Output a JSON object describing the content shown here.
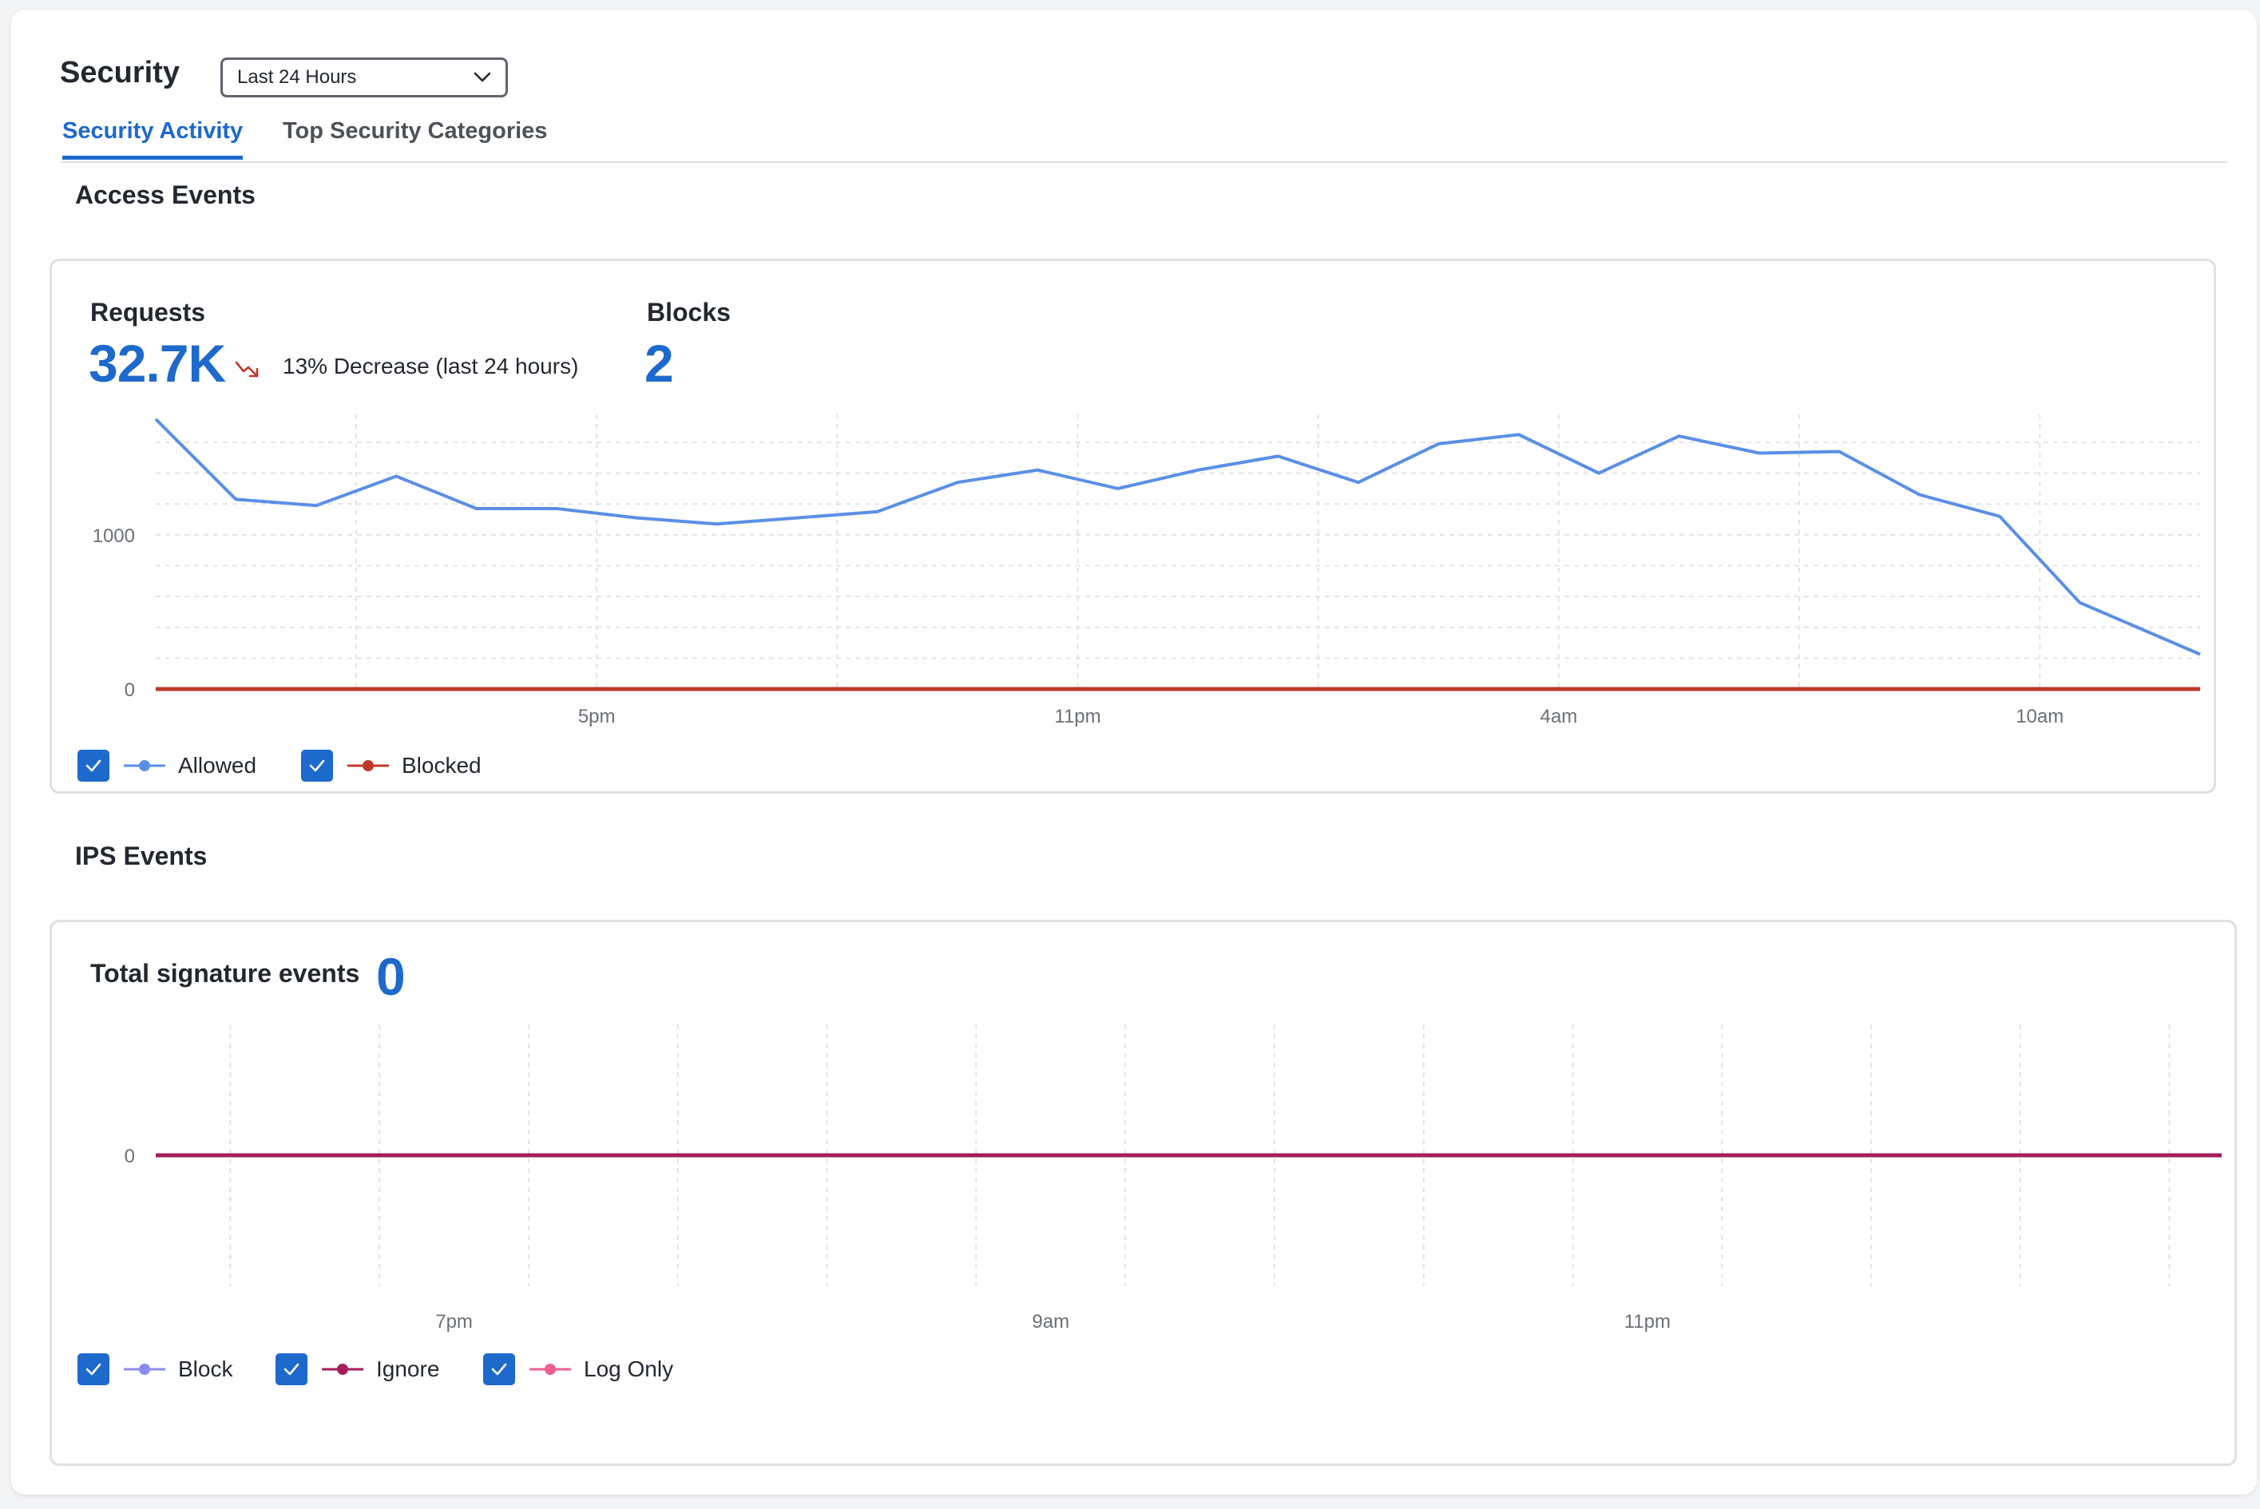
{
  "header": {
    "title": "Security",
    "time_range": "Last 24 Hours"
  },
  "tabs": [
    {
      "label": "Security Activity",
      "active": true
    },
    {
      "label": "Top Security Categories",
      "active": false
    }
  ],
  "colors": {
    "accent": "#1d69cc",
    "allowed": "#5b8fe6",
    "blocked": "#c0392b",
    "block": "#8a8cf0",
    "ignore": "#a61d5a",
    "log_only": "#ef5f8d"
  },
  "access_events": {
    "title": "Access Events",
    "requests_label": "Requests",
    "requests_value": "32.7K",
    "trend_text": "13% Decrease (last 24 hours)",
    "blocks_label": "Blocks",
    "blocks_value": "2",
    "legend": [
      {
        "label": "Allowed",
        "checked": true,
        "icon": "line-dot-icon"
      },
      {
        "label": "Blocked",
        "checked": true,
        "icon": "line-dot-icon"
      }
    ]
  },
  "ips_events": {
    "title": "IPS Events",
    "total_label": "Total signature events",
    "total_value": "0",
    "legend": [
      {
        "label": "Block",
        "checked": true,
        "icon": "line-dot-icon"
      },
      {
        "label": "Ignore",
        "checked": true,
        "icon": "line-dot-icon"
      },
      {
        "label": "Log Only",
        "checked": true,
        "icon": "line-dot-icon"
      }
    ]
  },
  "chart_data": [
    {
      "type": "line",
      "ytick_labels": [
        "1000",
        "0"
      ],
      "yticks": [
        1000,
        0
      ],
      "ylim": [
        0,
        1750
      ],
      "xtick_labels": [
        "5pm",
        "11pm",
        "4am",
        "10am"
      ],
      "xtick_positions": [
        5.5,
        11.5,
        17.5,
        23.5
      ],
      "xlim": [
        0,
        25.5
      ],
      "grid": true,
      "legend_position": "bottom-left",
      "series": [
        {
          "name": "Allowed",
          "x": [
            0,
            1,
            2,
            3,
            4,
            5,
            6,
            7,
            8,
            9,
            10,
            11,
            12,
            13,
            14,
            15,
            16,
            17,
            18,
            19,
            20,
            21,
            22,
            23,
            24,
            25.5
          ],
          "values": [
            1750,
            1230,
            1190,
            1380,
            1170,
            1170,
            1110,
            1070,
            1110,
            1150,
            1340,
            1420,
            1300,
            1420,
            1510,
            1340,
            1590,
            1650,
            1400,
            1640,
            1530,
            1540,
            1260,
            1120,
            560,
            225
          ]
        },
        {
          "name": "Blocked",
          "x": [
            0,
            25.5
          ],
          "values": [
            0,
            0
          ]
        }
      ]
    },
    {
      "type": "line",
      "ytick_labels": [
        "0"
      ],
      "yticks": [
        0
      ],
      "xtick_labels": [
        "7pm",
        "9am",
        "11pm"
      ],
      "xtick_positions": [
        4,
        12,
        20
      ],
      "xlim": [
        0,
        27.7
      ],
      "grid": true,
      "legend_position": "bottom-left",
      "series": [
        {
          "name": "Block",
          "x": [
            0,
            27.7
          ],
          "values": [
            0,
            0
          ]
        },
        {
          "name": "Ignore",
          "x": [
            0,
            27.7
          ],
          "values": [
            0,
            0
          ]
        },
        {
          "name": "Log Only",
          "x": [
            0,
            27.7
          ],
          "values": [
            0,
            0
          ]
        }
      ]
    }
  ]
}
